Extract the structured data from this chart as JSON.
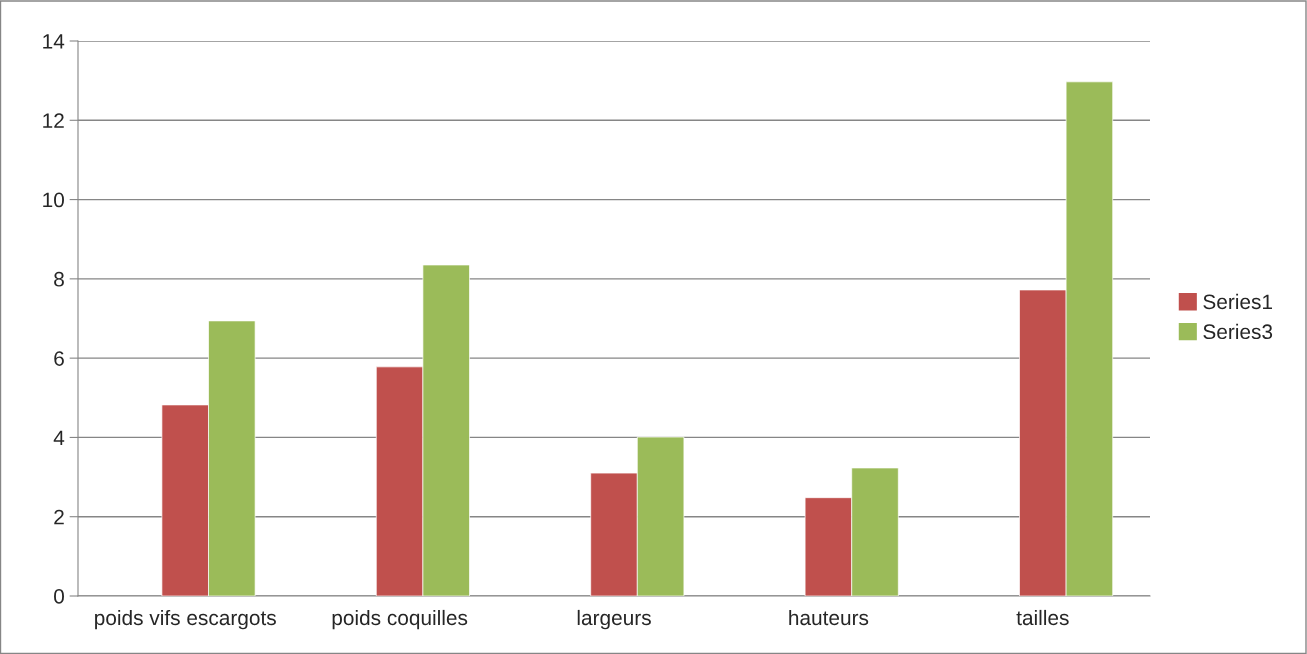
{
  "chart_data": {
    "type": "bar",
    "categories": [
      "poids vifs escargots",
      "poids coquilles",
      "largeurs",
      "hauteurs",
      "tailles"
    ],
    "series": [
      {
        "name": "Series1",
        "color": "#c0504d",
        "values": [
          4.82,
          5.78,
          3.1,
          2.48,
          7.72
        ]
      },
      {
        "name": "Series3",
        "color": "#9bbb59",
        "values": [
          6.94,
          8.35,
          4.01,
          3.23,
          12.97
        ]
      }
    ],
    "ylim": [
      0,
      14
    ],
    "yticks": [
      0,
      2,
      4,
      6,
      8,
      10,
      12,
      14
    ],
    "grid": "y",
    "legend": "right"
  }
}
